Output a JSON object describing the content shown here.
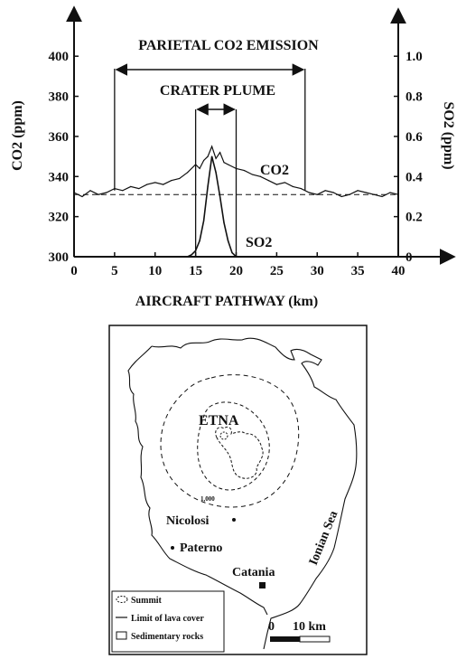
{
  "chart_data": {
    "type": "line",
    "title": "",
    "xlabel": "AIRCRAFT PATHWAY (km)",
    "ylabel_left": "CO2 (ppm)",
    "ylabel_right": "SO2 (ppm)",
    "xlim": [
      0,
      40
    ],
    "ylim_left": [
      300,
      410
    ],
    "ylim_right": [
      0,
      1.1
    ],
    "x_ticks": [
      0,
      5,
      10,
      15,
      20,
      25,
      30,
      35,
      40
    ],
    "y_ticks_left": [
      300,
      320,
      340,
      360,
      380,
      400
    ],
    "y_ticks_right": [
      "0",
      "0.2",
      "0.4",
      "0.6",
      "0.8",
      "1.0"
    ],
    "y_ticks_right_values": [
      0,
      0.2,
      0.4,
      0.6,
      0.8,
      1.0
    ],
    "grid": false,
    "annotations": {
      "parietal": "PARIETAL CO2 EMISSION",
      "parietal_range": [
        5,
        28.5
      ],
      "plume": "CRATER PLUME",
      "plume_range": [
        15,
        20
      ],
      "co2_label": "CO2",
      "so2_label": "SO2",
      "baseline_co2": 331
    },
    "series": [
      {
        "name": "CO2",
        "axis": "left",
        "x": [
          0,
          1,
          2,
          3,
          4,
          5,
          6,
          7,
          8,
          9,
          10,
          11,
          12,
          13,
          14,
          15,
          15.5,
          16,
          16.5,
          17,
          17.5,
          18,
          18.5,
          19,
          20,
          21,
          22,
          23,
          24,
          25,
          26,
          27,
          28,
          29,
          30,
          31,
          32,
          33,
          34,
          35,
          36,
          37,
          38,
          39,
          40
        ],
        "values": [
          332,
          330,
          333,
          331,
          332,
          334,
          333,
          335,
          334,
          336,
          337,
          336,
          338,
          339,
          342,
          346,
          344,
          348,
          350,
          355,
          349,
          352,
          347,
          346,
          344,
          343,
          341,
          340,
          338,
          336,
          337,
          335,
          334,
          332,
          331,
          333,
          332,
          330,
          331,
          333,
          332,
          331,
          330,
          332,
          331
        ]
      },
      {
        "name": "SO2",
        "axis": "right",
        "x": [
          0,
          14,
          14.5,
          15,
          15.5,
          16,
          16.5,
          17,
          17.5,
          18,
          18.5,
          19,
          19.5,
          20,
          40
        ],
        "values": [
          0,
          0,
          0.01,
          0.03,
          0.08,
          0.18,
          0.35,
          0.5,
          0.42,
          0.3,
          0.17,
          0.08,
          0.02,
          0,
          0
        ]
      }
    ]
  },
  "map": {
    "title": "ETNA",
    "contour_label": "1,000",
    "places": [
      "Nicolosi",
      "Paterno",
      "Catania"
    ],
    "sea_label": "Ionian Sea",
    "legend": [
      "Summit",
      "Limit of lava cover",
      "Sedimentary rocks"
    ],
    "scale_label": [
      "0",
      "10 km"
    ]
  }
}
